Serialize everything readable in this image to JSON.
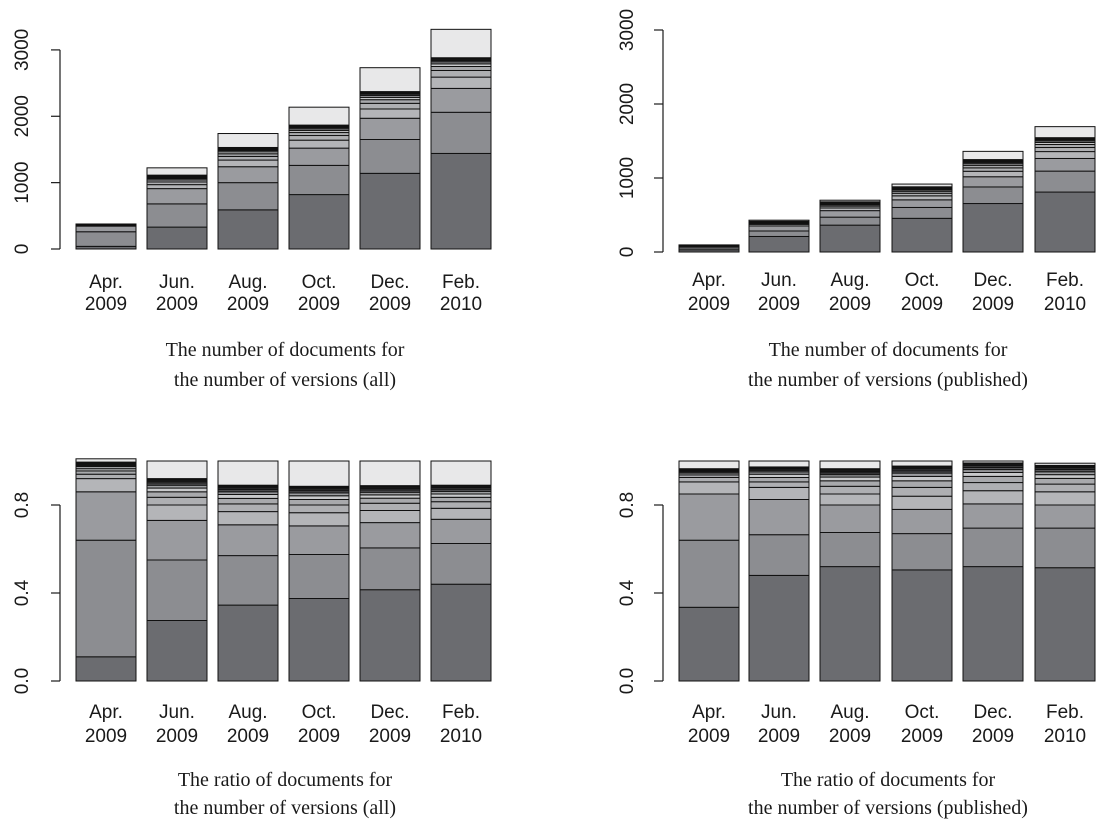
{
  "chart_data": [
    {
      "type": "bar",
      "stacked": true,
      "caption": [
        "The number of documents for",
        "the number of versions (all)"
      ],
      "categories": [
        [
          "Apr.",
          "2009"
        ],
        [
          "Jun.",
          "2009"
        ],
        [
          "Aug.",
          "2009"
        ],
        [
          "Oct.",
          "2009"
        ],
        [
          "Dec.",
          "2009"
        ],
        [
          "Feb.",
          "2010"
        ]
      ],
      "yticks": [
        "0",
        "1000",
        "2000",
        "3000"
      ],
      "ylim": [
        0,
        3300
      ],
      "stacks": [
        [
          40,
          220,
          85,
          10,
          6,
          4,
          3,
          2,
          2,
          2,
          2,
          1,
          0
        ],
        [
          330,
          350,
          230,
          60,
          40,
          30,
          20,
          15,
          12,
          10,
          8,
          8,
          110
        ],
        [
          590,
          410,
          240,
          100,
          55,
          40,
          30,
          20,
          15,
          10,
          10,
          10,
          210
        ],
        [
          820,
          440,
          260,
          120,
          70,
          45,
          30,
          25,
          20,
          15,
          12,
          10,
          270
        ],
        [
          1140,
          510,
          320,
          140,
          85,
          55,
          35,
          30,
          20,
          15,
          12,
          10,
          360
        ],
        [
          1440,
          620,
          360,
          170,
          100,
          60,
          40,
          30,
          22,
          18,
          12,
          10,
          428
        ]
      ],
      "grid": false,
      "legend": "none"
    },
    {
      "type": "bar",
      "stacked": true,
      "caption": [
        "The number of documents for",
        "the number of versions (published)"
      ],
      "categories": [
        [
          "Apr.",
          "2009"
        ],
        [
          "Jun.",
          "2009"
        ],
        [
          "Aug.",
          "2009"
        ],
        [
          "Oct.",
          "2009"
        ],
        [
          "Dec.",
          "2009"
        ],
        [
          "Feb.",
          "2010"
        ]
      ],
      "yticks": [
        "0",
        "1000",
        "2000",
        "3000"
      ],
      "ylim": [
        0,
        3000
      ],
      "stacks": [
        [
          30,
          27,
          19,
          5,
          3,
          2,
          1,
          1,
          1,
          1,
          0,
          0,
          6
        ],
        [
          210,
          74,
          68,
          22,
          12,
          9,
          6,
          4,
          3,
          2,
          2,
          2,
          16
        ],
        [
          363,
          108,
          88,
          36,
          25,
          18,
          12,
          8,
          6,
          5,
          5,
          4,
          22
        ],
        [
          455,
          147,
          103,
          54,
          35,
          27,
          18,
          13,
          9,
          9,
          6,
          5,
          37
        ],
        [
          655,
          224,
          138,
          74,
          46,
          35,
          22,
          17,
          12,
          11,
          8,
          7,
          111
        ],
        [
          810,
          283,
          171,
          93,
          55,
          41,
          27,
          20,
          17,
          12,
          9,
          7,
          149
        ]
      ],
      "grid": false,
      "legend": "none"
    },
    {
      "type": "bar",
      "stacked": true,
      "caption": [
        "The ratio of documents for",
        "the number of versions (all)"
      ],
      "categories": [
        [
          "Apr.",
          "2009"
        ],
        [
          "Jun.",
          "2009"
        ],
        [
          "Aug.",
          "2009"
        ],
        [
          "Oct.",
          "2009"
        ],
        [
          "Dec.",
          "2009"
        ],
        [
          "Feb.",
          "2010"
        ]
      ],
      "yticks": [
        "0.0",
        "0.4",
        "0.8"
      ],
      "ylim": [
        0,
        1
      ],
      "stacks": [
        [
          0.11,
          0.53,
          0.22,
          0.06,
          0.02,
          0.015,
          0.01,
          0.01,
          0.005,
          0.005,
          0.005,
          0.005,
          0.015
        ],
        [
          0.275,
          0.275,
          0.18,
          0.07,
          0.035,
          0.025,
          0.017,
          0.013,
          0.01,
          0.008,
          0.007,
          0.005,
          0.08
        ],
        [
          0.345,
          0.225,
          0.14,
          0.06,
          0.035,
          0.025,
          0.018,
          0.012,
          0.01,
          0.008,
          0.007,
          0.005,
          0.11
        ],
        [
          0.375,
          0.2,
          0.13,
          0.06,
          0.035,
          0.025,
          0.017,
          0.013,
          0.01,
          0.008,
          0.007,
          0.005,
          0.115
        ],
        [
          0.415,
          0.19,
          0.115,
          0.055,
          0.033,
          0.023,
          0.015,
          0.012,
          0.01,
          0.008,
          0.007,
          0.005,
          0.112
        ],
        [
          0.44,
          0.185,
          0.11,
          0.05,
          0.03,
          0.02,
          0.015,
          0.012,
          0.01,
          0.008,
          0.006,
          0.004,
          0.11
        ]
      ],
      "grid": false,
      "legend": "none"
    },
    {
      "type": "bar",
      "stacked": true,
      "caption": [
        "The ratio of documents for",
        "the number of versions (published)"
      ],
      "categories": [
        [
          "Apr.",
          "2009"
        ],
        [
          "Jun.",
          "2009"
        ],
        [
          "Aug.",
          "2009"
        ],
        [
          "Oct.",
          "2009"
        ],
        [
          "Dec.",
          "2009"
        ],
        [
          "Feb.",
          "2010"
        ]
      ],
      "yticks": [
        "0.0",
        "0.4",
        "0.8"
      ],
      "ylim": [
        0,
        1
      ],
      "stacks": [
        [
          0.335,
          0.305,
          0.21,
          0.055,
          0.02,
          0.012,
          0.008,
          0.005,
          0.005,
          0.004,
          0.003,
          0.003,
          0.035
        ],
        [
          0.48,
          0.185,
          0.16,
          0.055,
          0.025,
          0.02,
          0.015,
          0.01,
          0.008,
          0.006,
          0.005,
          0.004,
          0.027
        ],
        [
          0.52,
          0.155,
          0.125,
          0.05,
          0.035,
          0.025,
          0.017,
          0.011,
          0.008,
          0.007,
          0.007,
          0.005,
          0.035
        ],
        [
          0.505,
          0.165,
          0.11,
          0.06,
          0.04,
          0.03,
          0.02,
          0.015,
          0.01,
          0.01,
          0.007,
          0.005,
          0.023
        ],
        [
          0.52,
          0.175,
          0.11,
          0.06,
          0.037,
          0.028,
          0.018,
          0.013,
          0.01,
          0.009,
          0.006,
          0.005,
          0.009
        ],
        [
          0.515,
          0.18,
          0.105,
          0.06,
          0.035,
          0.026,
          0.017,
          0.013,
          0.011,
          0.008,
          0.006,
          0.004,
          0.01
        ]
      ],
      "grid": false,
      "legend": "none"
    }
  ],
  "colors": {
    "segments": [
      "#6b6c70",
      "#8c8d91",
      "#9a9b9f",
      "#b4b5b8",
      "#aeafb2",
      "#a8a9ac",
      "#c8c9cb",
      "#9c9da0",
      "#555558",
      "#3a3a3c",
      "#1e1e1f",
      "#111111",
      "#e8e8e9"
    ],
    "axis": "#1a1a1a",
    "text": "#1a1a1a"
  }
}
